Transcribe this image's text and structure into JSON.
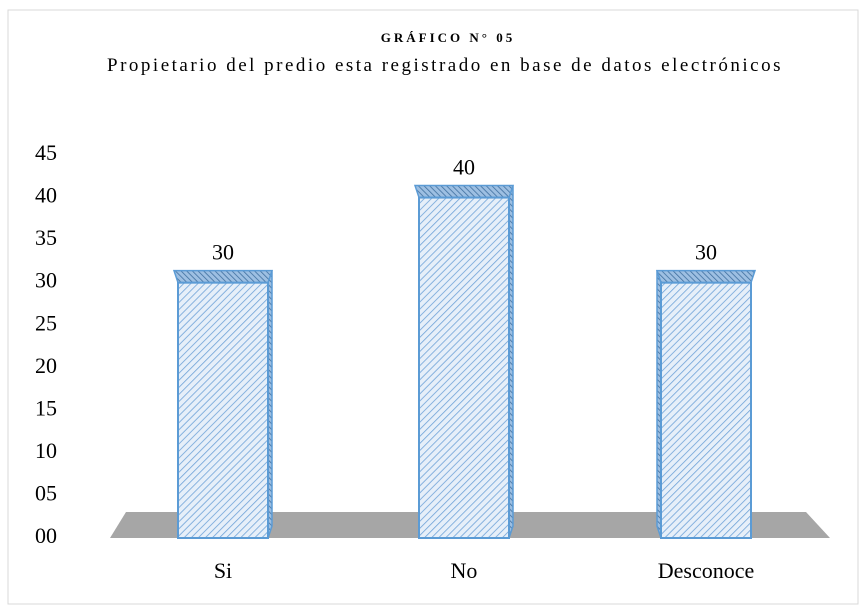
{
  "chart_data": {
    "type": "bar3d",
    "title": "GRÁFICO N° 05",
    "subtitle": "Propietario del predio esta registrado en base de datos electrónicos",
    "categories": [
      "Si",
      "No",
      "Desconoce"
    ],
    "values": [
      30,
      40,
      30
    ],
    "color": "#5b9bd5",
    "ylim": [
      0,
      45
    ],
    "yticks": [
      {
        "value": 0,
        "label": "00"
      },
      {
        "value": 5,
        "label": "05"
      },
      10,
      15,
      20,
      25,
      30,
      35,
      40,
      45
    ]
  }
}
